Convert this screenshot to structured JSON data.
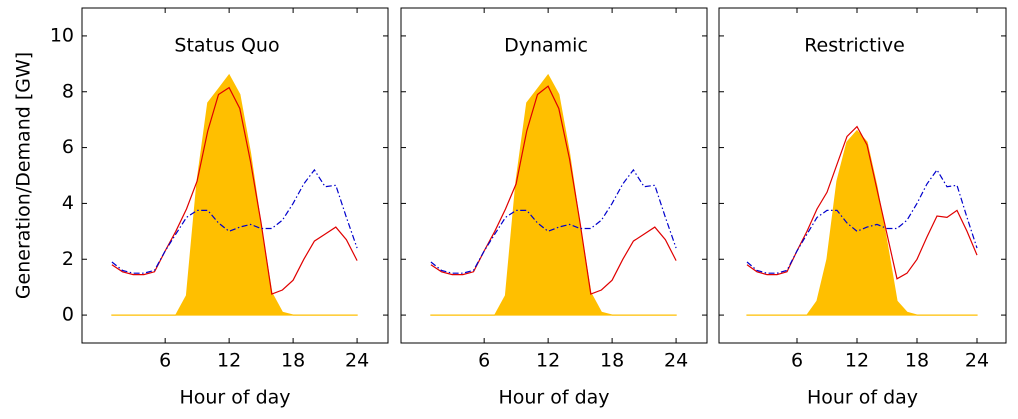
{
  "chart_data": [
    {
      "type": "line",
      "title": "Status Quo",
      "xlabel": "Hour of day",
      "ylabel": "Generation/Demand [GW]",
      "x": [
        1,
        2,
        3,
        4,
        5,
        6,
        7,
        8,
        9,
        10,
        11,
        12,
        13,
        14,
        15,
        16,
        17,
        18,
        19,
        20,
        21,
        22,
        23,
        24
      ],
      "series": [
        {
          "color": "#ffbf00",
          "fill": true,
          "values": [
            0,
            0,
            0,
            0,
            0,
            0,
            0,
            0.7,
            4.8,
            7.6,
            8.1,
            8.6,
            7.9,
            5.8,
            3.2,
            0.8,
            0.1,
            0,
            0,
            0,
            0,
            0,
            0,
            0
          ]
        },
        {
          "color": "#e00000",
          "values": [
            1.8,
            1.55,
            1.45,
            1.45,
            1.55,
            2.3,
            3.0,
            3.8,
            4.8,
            6.6,
            7.9,
            8.15,
            7.4,
            5.5,
            3.3,
            0.75,
            0.9,
            1.25,
            2.0,
            2.65,
            2.9,
            3.15,
            2.7,
            1.95
          ]
        },
        {
          "color": "#0000cc",
          "dash": "dashdot",
          "values": [
            1.9,
            1.6,
            1.5,
            1.5,
            1.6,
            2.3,
            2.9,
            3.5,
            3.75,
            3.75,
            3.3,
            3.0,
            3.15,
            3.25,
            3.1,
            3.1,
            3.4,
            4.0,
            4.7,
            5.2,
            4.6,
            4.65,
            3.5,
            2.4
          ]
        }
      ],
      "xlim": [
        -1.8,
        26.9
      ],
      "ylim": [
        -1,
        11
      ],
      "xticks": [
        6,
        12,
        18,
        24
      ],
      "yticks": [
        0,
        2,
        4,
        6,
        8,
        10
      ]
    },
    {
      "type": "line",
      "title": "Dynamic",
      "xlabel": "Hour of day",
      "x": [
        1,
        2,
        3,
        4,
        5,
        6,
        7,
        8,
        9,
        10,
        11,
        12,
        13,
        14,
        15,
        16,
        17,
        18,
        19,
        20,
        21,
        22,
        23,
        24
      ],
      "series": [
        {
          "color": "#ffbf00",
          "fill": true,
          "values": [
            0,
            0,
            0,
            0,
            0,
            0,
            0,
            0.7,
            4.8,
            7.6,
            8.1,
            8.6,
            7.9,
            5.8,
            3.2,
            0.8,
            0.1,
            0,
            0,
            0,
            0,
            0,
            0,
            0
          ]
        },
        {
          "color": "#e00000",
          "values": [
            1.8,
            1.55,
            1.45,
            1.45,
            1.55,
            2.3,
            3.0,
            3.8,
            4.7,
            6.6,
            7.9,
            8.2,
            7.4,
            5.6,
            3.3,
            0.75,
            0.9,
            1.25,
            2.0,
            2.65,
            2.9,
            3.15,
            2.7,
            1.95
          ]
        },
        {
          "color": "#0000cc",
          "dash": "dashdot",
          "values": [
            1.9,
            1.6,
            1.5,
            1.5,
            1.6,
            2.3,
            2.9,
            3.5,
            3.75,
            3.75,
            3.3,
            3.0,
            3.15,
            3.25,
            3.1,
            3.1,
            3.4,
            4.0,
            4.7,
            5.2,
            4.6,
            4.65,
            3.5,
            2.4
          ]
        }
      ],
      "xlim": [
        -1.8,
        26.9
      ],
      "ylim": [
        -1,
        11
      ],
      "xticks": [
        6,
        12,
        18,
        24
      ],
      "yticks": [
        0,
        2,
        4,
        6,
        8,
        10
      ]
    },
    {
      "type": "line",
      "title": "Restrictive",
      "xlabel": "Hour of day",
      "x": [
        1,
        2,
        3,
        4,
        5,
        6,
        7,
        8,
        9,
        10,
        11,
        12,
        13,
        14,
        15,
        16,
        17,
        18,
        19,
        20,
        21,
        22,
        23,
        24
      ],
      "series": [
        {
          "color": "#ffbf00",
          "fill": true,
          "values": [
            0,
            0,
            0,
            0,
            0,
            0,
            0,
            0.5,
            2.0,
            4.8,
            6.2,
            6.6,
            6.2,
            4.6,
            2.6,
            0.5,
            0.1,
            0,
            0,
            0,
            0,
            0,
            0,
            0
          ]
        },
        {
          "color": "#e00000",
          "values": [
            1.8,
            1.55,
            1.45,
            1.45,
            1.55,
            2.3,
            3.0,
            3.8,
            4.4,
            5.4,
            6.4,
            6.75,
            6.1,
            4.5,
            2.9,
            1.3,
            1.5,
            2.0,
            2.8,
            3.55,
            3.5,
            3.75,
            3.0,
            2.15
          ]
        },
        {
          "color": "#0000cc",
          "dash": "dashdot",
          "values": [
            1.9,
            1.6,
            1.5,
            1.5,
            1.6,
            2.3,
            2.9,
            3.5,
            3.75,
            3.75,
            3.3,
            3.0,
            3.15,
            3.25,
            3.1,
            3.1,
            3.4,
            4.0,
            4.7,
            5.2,
            4.6,
            4.65,
            3.5,
            2.4
          ]
        }
      ],
      "xlim": [
        -1.8,
        26.9
      ],
      "ylim": [
        -1,
        11
      ],
      "xticks": [
        6,
        12,
        18,
        24
      ],
      "yticks": [
        0,
        2,
        4,
        6,
        8,
        10
      ]
    }
  ]
}
